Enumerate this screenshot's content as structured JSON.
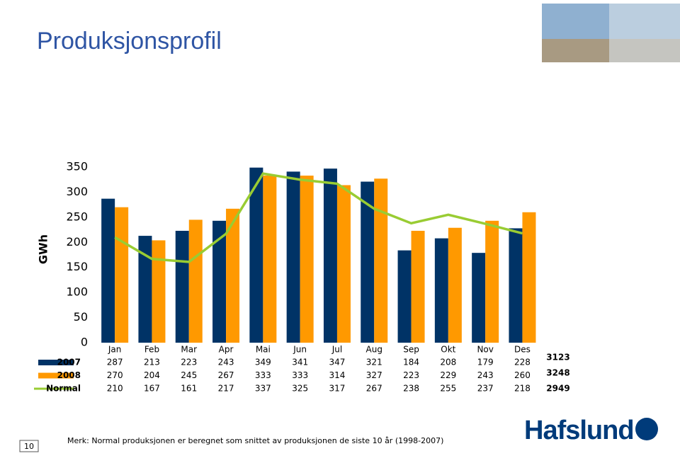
{
  "header": {
    "title": "Produksjonsprofil"
  },
  "chart_data": {
    "type": "bar",
    "y_label": "GWh",
    "categories": [
      "Jan",
      "Feb",
      "Mar",
      "Apr",
      "Mai",
      "Jun",
      "Jul",
      "Aug",
      "Sep",
      "Okt",
      "Nov",
      "Des"
    ],
    "series": [
      {
        "name": "2007",
        "color": "#003366",
        "kind": "bar",
        "values": [
          287,
          213,
          223,
          243,
          349,
          341,
          347,
          321,
          184,
          208,
          179,
          228
        ],
        "total": 3123
      },
      {
        "name": "2008",
        "color": "#ff9900",
        "kind": "bar",
        "values": [
          270,
          204,
          245,
          267,
          333,
          333,
          314,
          327,
          223,
          229,
          243,
          260
        ],
        "total": 3248
      },
      {
        "name": "Normal",
        "color": "#99cc33",
        "kind": "line",
        "values": [
          210,
          167,
          161,
          217,
          337,
          325,
          317,
          267,
          238,
          255,
          237,
          218
        ],
        "total": 2949
      }
    ],
    "ylim": [
      0,
      350
    ],
    "yticks": [
      0,
      50,
      100,
      150,
      200,
      250,
      300,
      350
    ],
    "grid": false
  },
  "footer": {
    "page": "10",
    "note": "Merk: Normal produksjonen er beregnet som snittet av produksjonen de siste 10 år (1998-2007)",
    "logo": "Hafslund"
  }
}
